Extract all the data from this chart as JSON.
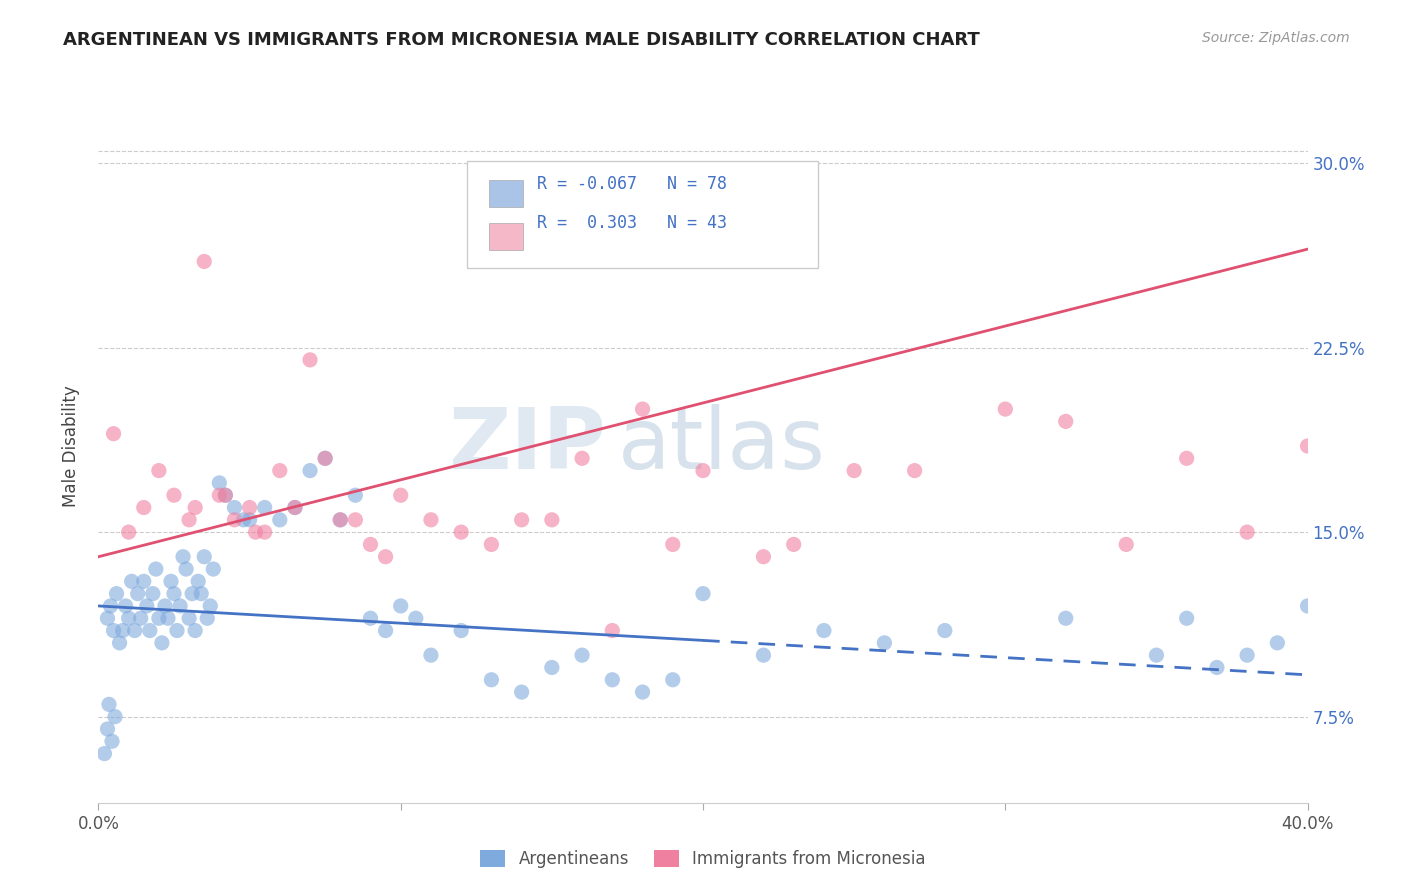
{
  "title": "ARGENTINEAN VS IMMIGRANTS FROM MICRONESIA MALE DISABILITY CORRELATION CHART",
  "source": "Source: ZipAtlas.com",
  "ylabel": "Male Disability",
  "y_ticks": [
    7.5,
    15.0,
    22.5,
    30.0
  ],
  "y_tick_labels": [
    "7.5%",
    "15.0%",
    "22.5%",
    "30.0%"
  ],
  "xmin": 0.0,
  "xmax": 40.0,
  "ymin": 4.0,
  "ymax": 33.0,
  "R_blue": -0.067,
  "N_blue": 78,
  "R_pink": 0.303,
  "N_pink": 43,
  "blue_color": "#aac4e8",
  "blue_dot_color": "#7faadd",
  "pink_color": "#f4b8c8",
  "pink_dot_color": "#f080a0",
  "trend_blue": "#4472c4",
  "trend_pink": "#e05070",
  "watermark_zip": "ZIP",
  "watermark_atlas": "atlas",
  "legend_label_blue": "Argentineans",
  "legend_label_pink": "Immigrants from Micronesia",
  "blue_scatter_x": [
    0.3,
    0.4,
    0.5,
    0.6,
    0.7,
    0.8,
    0.9,
    1.0,
    1.1,
    1.2,
    1.3,
    1.4,
    1.5,
    1.6,
    1.7,
    1.8,
    1.9,
    2.0,
    2.1,
    2.2,
    2.3,
    2.4,
    2.5,
    2.6,
    2.7,
    2.8,
    2.9,
    3.0,
    3.1,
    3.2,
    3.3,
    3.4,
    3.5,
    3.6,
    3.7,
    3.8,
    4.0,
    4.2,
    4.5,
    4.8,
    5.0,
    5.5,
    6.0,
    6.5,
    7.0,
    7.5,
    8.0,
    8.5,
    9.0,
    9.5,
    10.0,
    10.5,
    11.0,
    12.0,
    13.0,
    14.0,
    15.0,
    16.0,
    17.0,
    18.0,
    19.0,
    20.0,
    22.0,
    24.0,
    26.0,
    28.0,
    32.0,
    35.0,
    36.0,
    37.0,
    38.0,
    39.0,
    40.0,
    0.2,
    0.3,
    0.35,
    0.45,
    0.55
  ],
  "blue_scatter_y": [
    11.5,
    12.0,
    11.0,
    12.5,
    10.5,
    11.0,
    12.0,
    11.5,
    13.0,
    11.0,
    12.5,
    11.5,
    13.0,
    12.0,
    11.0,
    12.5,
    13.5,
    11.5,
    10.5,
    12.0,
    11.5,
    13.0,
    12.5,
    11.0,
    12.0,
    14.0,
    13.5,
    11.5,
    12.5,
    11.0,
    13.0,
    12.5,
    14.0,
    11.5,
    12.0,
    13.5,
    17.0,
    16.5,
    16.0,
    15.5,
    15.5,
    16.0,
    15.5,
    16.0,
    17.5,
    18.0,
    15.5,
    16.5,
    11.5,
    11.0,
    12.0,
    11.5,
    10.0,
    11.0,
    9.0,
    8.5,
    9.5,
    10.0,
    9.0,
    8.5,
    9.0,
    12.5,
    10.0,
    11.0,
    10.5,
    11.0,
    11.5,
    10.0,
    11.5,
    9.5,
    10.0,
    10.5,
    12.0,
    6.0,
    7.0,
    8.0,
    6.5,
    7.5
  ],
  "pink_scatter_x": [
    0.5,
    1.0,
    1.5,
    2.0,
    2.5,
    3.0,
    3.5,
    4.0,
    4.5,
    5.0,
    5.5,
    6.0,
    6.5,
    7.0,
    7.5,
    8.0,
    8.5,
    9.0,
    9.5,
    10.0,
    11.0,
    12.0,
    13.0,
    14.0,
    15.0,
    16.0,
    17.0,
    18.0,
    19.0,
    20.0,
    22.0,
    23.0,
    25.0,
    27.0,
    30.0,
    32.0,
    34.0,
    36.0,
    38.0,
    40.0,
    3.2,
    4.2,
    5.2
  ],
  "pink_scatter_y": [
    19.0,
    15.0,
    16.0,
    17.5,
    16.5,
    15.5,
    26.0,
    16.5,
    15.5,
    16.0,
    15.0,
    17.5,
    16.0,
    22.0,
    18.0,
    15.5,
    15.5,
    14.5,
    14.0,
    16.5,
    15.5,
    15.0,
    14.5,
    15.5,
    15.5,
    18.0,
    11.0,
    20.0,
    14.5,
    17.5,
    14.0,
    14.5,
    17.5,
    17.5,
    20.0,
    19.5,
    14.5,
    18.0,
    15.0,
    18.5,
    16.0,
    16.5,
    15.0
  ],
  "blue_trend_start_x": 0.0,
  "blue_trend_solid_end_x": 20.0,
  "blue_trend_end_x": 40.0,
  "blue_trend_start_y": 12.0,
  "blue_trend_end_y": 9.2,
  "pink_trend_start_x": 0.0,
  "pink_trend_end_x": 40.0,
  "pink_trend_start_y": 14.0,
  "pink_trend_end_y": 26.5
}
